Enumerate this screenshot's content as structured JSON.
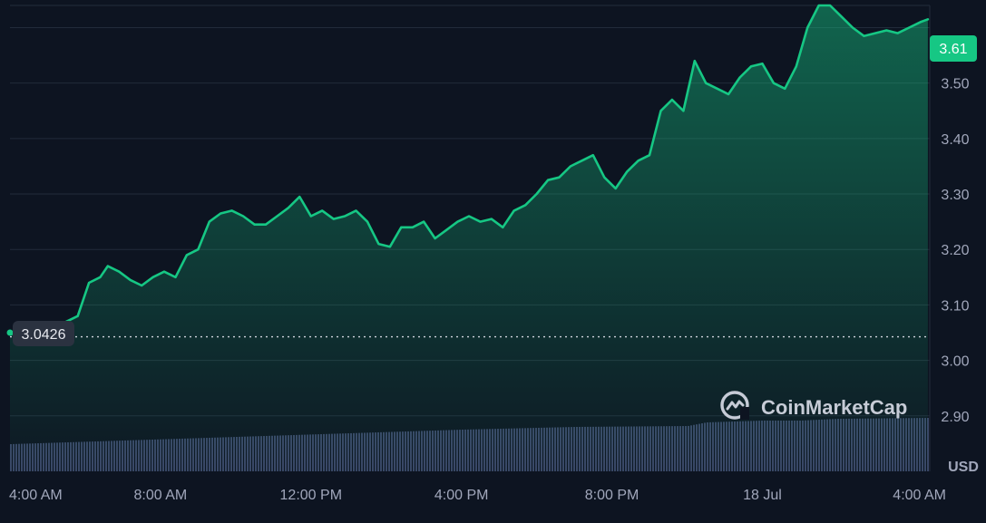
{
  "brand": {
    "name": "CoinMarketCap",
    "icon": "coinmarketcap-logo-icon"
  },
  "colors": {
    "background": "#0d1421",
    "grid": "#222b3a",
    "line": "#16c784",
    "area_top": "#16c784",
    "volume": "#3a4566",
    "axis_text": "#a1a7bb",
    "brand_text": "#c6cbd6",
    "current_badge_bg": "#16c784",
    "start_badge_bg": "#2b3240"
  },
  "chart_data": {
    "type": "area",
    "currency_label": "USD",
    "ylim": [
      2.8,
      3.64
    ],
    "yticks": [
      2.9,
      3.0,
      3.1,
      3.2,
      3.3,
      3.4,
      3.5
    ],
    "ytick_labels": [
      "2.90",
      "3.00",
      "3.10",
      "3.20",
      "3.30",
      "3.40",
      "3.50"
    ],
    "xlim": [
      0,
      24.45
    ],
    "xticks": [
      0.2,
      4,
      8,
      12,
      16,
      20,
      24
    ],
    "xtick_labels": [
      "4:00 AM",
      "8:00 AM",
      "12:00 PM",
      "4:00 PM",
      "8:00 PM",
      "18 Jul",
      "4:00 AM"
    ],
    "current_price": "3.61",
    "start_price": "3.0426",
    "start_price_value": 3.0426,
    "price_series": {
      "x": [
        0,
        0.3,
        0.6,
        0.9,
        1.2,
        1.5,
        1.8,
        2.1,
        2.4,
        2.6,
        2.9,
        3.2,
        3.5,
        3.8,
        4.1,
        4.4,
        4.7,
        5.0,
        5.3,
        5.6,
        5.9,
        6.2,
        6.5,
        6.8,
        7.1,
        7.4,
        7.7,
        8.0,
        8.3,
        8.6,
        8.9,
        9.2,
        9.5,
        9.8,
        10.1,
        10.4,
        10.7,
        11.0,
        11.3,
        11.6,
        11.9,
        12.2,
        12.5,
        12.8,
        13.1,
        13.4,
        13.7,
        14.0,
        14.3,
        14.6,
        14.9,
        15.2,
        15.5,
        15.8,
        16.1,
        16.4,
        16.7,
        17.0,
        17.3,
        17.6,
        17.9,
        18.2,
        18.5,
        18.8,
        19.1,
        19.4,
        19.7,
        20.0,
        20.3,
        20.6,
        20.9,
        21.2,
        21.5,
        21.8,
        22.1,
        22.4,
        22.7,
        23.0,
        23.3,
        23.6,
        23.9,
        24.2,
        24.4
      ],
      "y": [
        3.05,
        3.04,
        3.045,
        3.045,
        3.06,
        3.07,
        3.08,
        3.14,
        3.15,
        3.17,
        3.16,
        3.145,
        3.135,
        3.15,
        3.16,
        3.15,
        3.19,
        3.2,
        3.25,
        3.265,
        3.27,
        3.26,
        3.245,
        3.245,
        3.26,
        3.275,
        3.295,
        3.26,
        3.27,
        3.255,
        3.26,
        3.27,
        3.25,
        3.21,
        3.205,
        3.24,
        3.24,
        3.25,
        3.22,
        3.235,
        3.25,
        3.26,
        3.25,
        3.255,
        3.24,
        3.27,
        3.28,
        3.3,
        3.325,
        3.33,
        3.35,
        3.36,
        3.37,
        3.33,
        3.31,
        3.34,
        3.36,
        3.37,
        3.45,
        3.47,
        3.45,
        3.54,
        3.5,
        3.49,
        3.48,
        3.51,
        3.53,
        3.535,
        3.5,
        3.49,
        3.53,
        3.6,
        3.64,
        3.64,
        3.62,
        3.6,
        3.585,
        3.59,
        3.595,
        3.59,
        3.6,
        3.61,
        3.615
      ]
    },
    "volume_series": {
      "x": [
        0,
        3,
        6,
        9,
        12,
        15,
        18,
        18.5,
        20,
        21,
        22,
        24.4
      ],
      "y": [
        0.3,
        0.34,
        0.38,
        0.42,
        0.46,
        0.49,
        0.5,
        0.54,
        0.56,
        0.56,
        0.58,
        0.59
      ]
    },
    "grid": true
  }
}
